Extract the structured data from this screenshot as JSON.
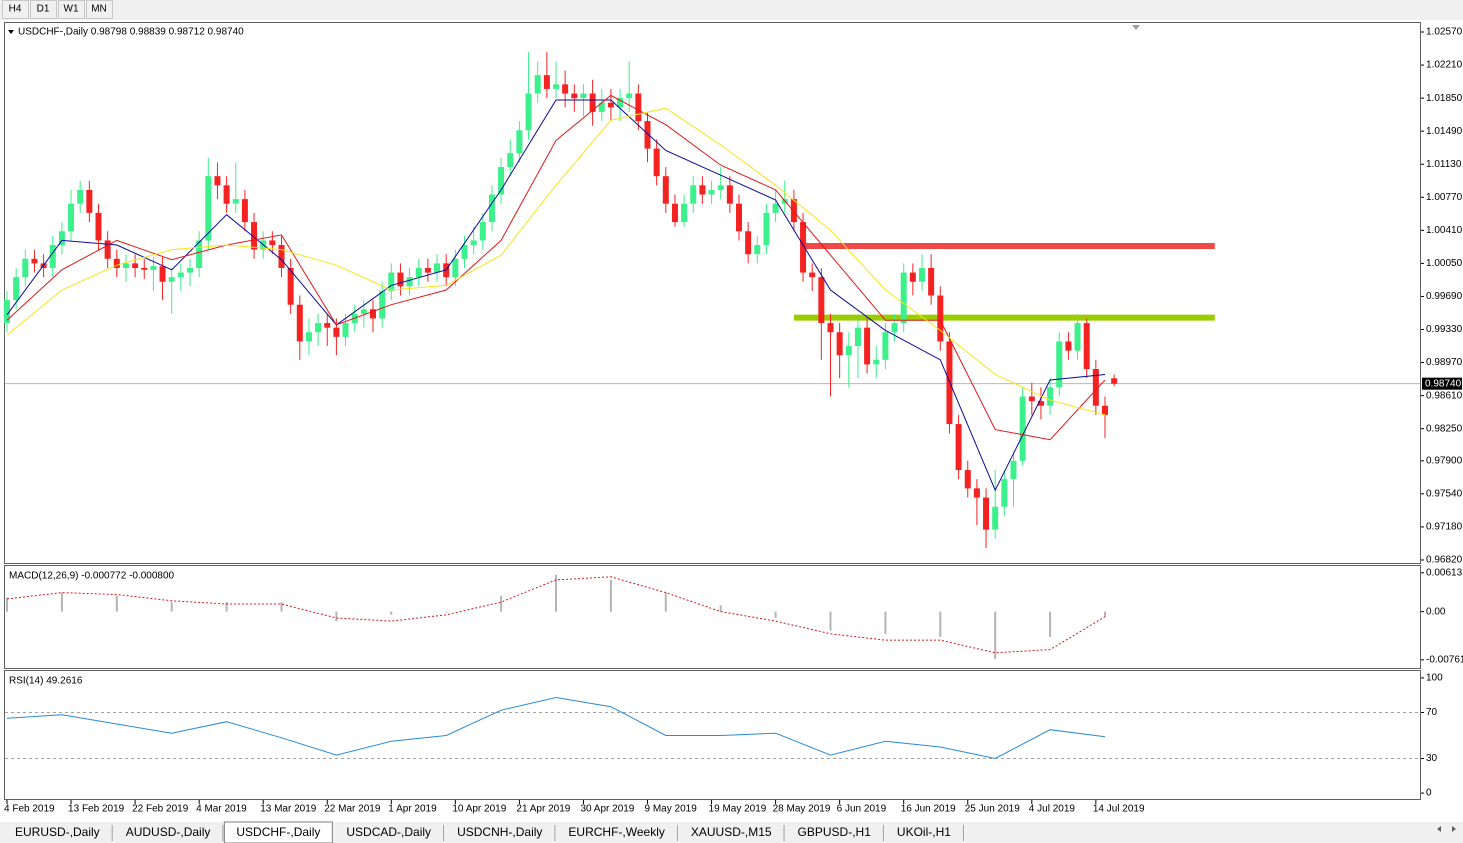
{
  "toolbar": {
    "timeframes": [
      "H4",
      "D1",
      "W1",
      "MN"
    ]
  },
  "tabs": {
    "items": [
      "EURUSD-,Daily",
      "AUDUSD-,Daily",
      "USDCHF-,Daily",
      "USDCAD-,Daily",
      "USDCNH-,Daily",
      "EURCHF-,Weekly",
      "XAUUSD-,M15",
      "GBPUSD-,H1",
      "UKOil-,H1"
    ],
    "active": 2
  },
  "chart_data": [
    {
      "type": "candlestick",
      "title": "USDCHF-,Daily 0.98798 0.98839 0.98712 0.98740",
      "categories": [
        "4 Feb 2019",
        null,
        null,
        null,
        null,
        null,
        null,
        "13 Feb 2019",
        null,
        null,
        null,
        null,
        null,
        null,
        "22 Feb 2019",
        null,
        null,
        null,
        null,
        null,
        null,
        "4 Mar 2019",
        null,
        null,
        null,
        null,
        null,
        null,
        "13 Mar 2019",
        null,
        null,
        null,
        null,
        null,
        null,
        "22 Mar 2019",
        null,
        null,
        null,
        null,
        null,
        null,
        "1 Apr 2019",
        null,
        null,
        null,
        null,
        null,
        null,
        "10 Apr 2019",
        null,
        null,
        null,
        null,
        null,
        null,
        "21 Apr 2019",
        null,
        null,
        null,
        null,
        null,
        null,
        "30 Apr 2019",
        null,
        null,
        null,
        null,
        null,
        null,
        "9 May 2019",
        null,
        null,
        null,
        null,
        null,
        null,
        "19 May 2019",
        null,
        null,
        null,
        null,
        null,
        null,
        "28 May 2019",
        null,
        null,
        null,
        null,
        null,
        null,
        "6 Jun 2019",
        null,
        null,
        null,
        null,
        null,
        null,
        "16 Jun 2019",
        null,
        null,
        null,
        null,
        null,
        null,
        "25 Jun 2019",
        null,
        null,
        null,
        null,
        null,
        null,
        "4 Jul 2019",
        null,
        null,
        null,
        null,
        null,
        null,
        "14 Jul 2019",
        null,
        null
      ],
      "open": [
        0.994,
        0.9965,
        0.999,
        1.001,
        1.0005,
        1.0,
        1.0025,
        1.004,
        1.007,
        1.0085,
        1.006,
        1.003,
        1.001,
        1.0,
        1.0005,
        1.0,
        0.9998,
        1.0002,
        0.9985,
        0.999,
        0.9995,
        1.0,
        1.003,
        1.01,
        1.009,
        1.007,
        1.0075,
        1.005,
        1.002,
        1.003,
        1.0025,
        1.0,
        0.996,
        0.992,
        0.993,
        0.994,
        0.9935,
        0.9925,
        0.994,
        0.995,
        0.9955,
        0.9945,
        0.9975,
        0.9995,
        0.998,
        0.999,
        1.0,
        0.9995,
        1.0005,
        0.999,
        1.001,
        1.0025,
        1.003,
        1.005,
        1.008,
        1.011,
        1.0125,
        1.015,
        1.019,
        1.021,
        1.0195,
        1.02,
        1.019,
        1.0185,
        1.019,
        1.017,
        1.018,
        1.0175,
        1.0185,
        1.019,
        1.016,
        1.013,
        1.01,
        1.007,
        1.005,
        1.007,
        1.009,
        1.008,
        1.0085,
        1.009,
        1.007,
        1.004,
        1.0015,
        1.0025,
        1.006,
        1.007,
        1.0075,
        1.005,
        0.9995,
        0.999,
        0.994,
        0.993,
        0.9905,
        0.9915,
        0.9935,
        0.9895,
        0.99,
        0.993,
        0.994,
        0.9995,
        0.9985,
        1.0,
        0.997,
        0.992,
        0.983,
        0.978,
        0.976,
        0.975,
        0.9715,
        0.974,
        0.977,
        0.979,
        0.986,
        0.9855,
        0.985,
        0.987,
        0.992,
        0.991,
        0.994,
        0.989,
        0.985,
        0.98798
      ],
      "high": [
        0.9975,
        1.0,
        1.002,
        1.002,
        1.0015,
        1.0035,
        1.005,
        1.0085,
        1.0095,
        1.0095,
        1.007,
        1.004,
        1.002,
        1.0015,
        1.0015,
        1.001,
        1.0012,
        1.0012,
        1.0,
        1.0005,
        1.001,
        1.004,
        1.012,
        1.0115,
        1.01,
        1.0115,
        1.0085,
        1.006,
        1.004,
        1.004,
        1.0035,
        1.001,
        0.997,
        0.9945,
        0.995,
        0.995,
        0.9945,
        0.995,
        0.996,
        0.9965,
        0.9965,
        0.9985,
        1.0005,
        1.0005,
        1.0,
        1.001,
        1.001,
        1.0015,
        1.0015,
        1.002,
        1.0035,
        1.0045,
        1.006,
        1.009,
        1.012,
        1.014,
        1.016,
        1.0235,
        1.0225,
        1.0235,
        1.0225,
        1.0215,
        1.02,
        1.02,
        1.0205,
        1.0195,
        1.0195,
        1.0195,
        1.0225,
        1.02,
        1.017,
        1.014,
        1.011,
        1.008,
        1.008,
        1.01,
        1.01,
        1.0095,
        1.011,
        1.01,
        1.008,
        1.005,
        1.0035,
        1.007,
        1.0085,
        1.0095,
        1.0085,
        1.006,
        1.0005,
        1.0,
        0.995,
        0.994,
        0.993,
        0.9945,
        0.9945,
        0.9915,
        0.994,
        0.995,
        1.0005,
        1.0005,
        1.0015,
        1.0015,
        0.998,
        0.993,
        0.984,
        0.979,
        0.977,
        0.976,
        0.978,
        0.978,
        0.98,
        0.987,
        0.9875,
        0.987,
        0.988,
        0.993,
        0.993,
        0.995,
        0.9945,
        0.99,
        0.986,
        0.98839
      ],
      "low": [
        0.993,
        0.9955,
        0.998,
        0.9995,
        0.999,
        0.999,
        1.0015,
        1.003,
        1.006,
        1.005,
        1.002,
        1.0,
        0.999,
        0.9985,
        0.999,
        0.9988,
        0.9975,
        0.9965,
        0.995,
        0.9975,
        0.998,
        0.999,
        1.002,
        1.0075,
        1.006,
        1.006,
        1.004,
        1.001,
        1.001,
        1.0015,
        0.999,
        0.995,
        0.99,
        0.9905,
        0.9915,
        0.9915,
        0.9905,
        0.9915,
        0.993,
        0.9935,
        0.993,
        0.9935,
        0.9965,
        0.997,
        0.997,
        0.998,
        0.9985,
        0.9985,
        0.998,
        0.998,
        1.0,
        1.0015,
        1.002,
        1.004,
        1.007,
        1.01,
        1.0115,
        1.014,
        1.018,
        1.0185,
        1.0185,
        1.0175,
        1.017,
        1.0165,
        1.0155,
        1.016,
        1.016,
        1.016,
        1.017,
        1.015,
        1.0115,
        1.009,
        1.006,
        1.0045,
        1.0045,
        1.006,
        1.007,
        1.007,
        1.0075,
        1.006,
        1.003,
        1.0005,
        1.0005,
        1.0015,
        1.005,
        1.006,
        1.004,
        0.9985,
        0.9975,
        0.99,
        0.986,
        0.988,
        0.987,
        0.988,
        0.9885,
        0.988,
        0.989,
        0.992,
        0.993,
        0.997,
        0.9975,
        0.996,
        0.991,
        0.982,
        0.977,
        0.975,
        0.972,
        0.9695,
        0.9705,
        0.973,
        0.974,
        0.9785,
        0.984,
        0.9835,
        0.984,
        0.986,
        0.99,
        0.99,
        0.988,
        0.984,
        0.9815,
        0.98712
      ],
      "close": [
        0.9965,
        0.999,
        1.001,
        1.0005,
        1.0,
        1.0025,
        1.004,
        1.007,
        1.0085,
        1.006,
        1.003,
        1.001,
        1.0,
        1.0005,
        1.0,
        0.9998,
        1.0002,
        0.9985,
        0.999,
        0.9995,
        1.0,
        1.003,
        1.01,
        1.009,
        1.007,
        1.0075,
        1.005,
        1.002,
        1.003,
        1.0025,
        1.0,
        0.996,
        0.992,
        0.993,
        0.994,
        0.9935,
        0.9925,
        0.994,
        0.995,
        0.9955,
        0.9945,
        0.9975,
        0.9995,
        0.998,
        0.999,
        1.0,
        0.9995,
        1.0005,
        0.999,
        1.001,
        1.0025,
        1.003,
        1.005,
        1.008,
        1.011,
        1.0125,
        1.015,
        1.019,
        1.021,
        1.0195,
        1.02,
        1.019,
        1.0185,
        1.019,
        1.017,
        1.018,
        1.0175,
        1.0185,
        1.019,
        1.016,
        1.013,
        1.01,
        1.007,
        1.005,
        1.007,
        1.009,
        1.008,
        1.0085,
        1.009,
        1.007,
        1.004,
        1.0015,
        1.0025,
        1.006,
        1.007,
        1.0075,
        1.005,
        0.9995,
        0.999,
        0.994,
        0.993,
        0.9905,
        0.9915,
        0.9935,
        0.9895,
        0.99,
        0.993,
        0.994,
        0.9995,
        0.9985,
        1.0,
        0.997,
        0.992,
        0.983,
        0.978,
        0.976,
        0.975,
        0.9715,
        0.974,
        0.977,
        0.979,
        0.986,
        0.9855,
        0.985,
        0.987,
        0.992,
        0.991,
        0.994,
        0.989,
        0.985,
        0.984,
        0.9874
      ],
      "colors": {
        "up": "#3cf08c",
        "down": "#f52222"
      },
      "ylim": [
        0.96787,
        1.02679
      ],
      "yticks": [
        {
          "value": 1.0257,
          "label": "1.02570"
        },
        {
          "value": 1.0221,
          "label": "1.02210"
        },
        {
          "value": 1.0185,
          "label": "1.01850"
        },
        {
          "value": 1.0149,
          "label": "1.01490"
        },
        {
          "value": 1.0113,
          "label": "1.01130"
        },
        {
          "value": 1.0077,
          "label": "1.00770"
        },
        {
          "value": 1.0041,
          "label": "1.00410"
        },
        {
          "value": 1.0005,
          "label": "1.00050"
        },
        {
          "value": 0.9969,
          "label": "0.99690"
        },
        {
          "value": 0.9933,
          "label": "0.99330"
        },
        {
          "value": 0.9897,
          "label": "0.98970"
        },
        {
          "value": 0.9861,
          "label": "0.98610"
        },
        {
          "value": 0.9825,
          "label": "0.98250"
        },
        {
          "value": 0.979,
          "label": "0.97900"
        },
        {
          "value": 0.9754,
          "label": "0.97540"
        },
        {
          "value": 0.9718,
          "label": "0.97180"
        },
        {
          "value": 0.9682,
          "label": "0.96820"
        }
      ],
      "current_price": {
        "value": 0.9874,
        "label": "0.98740"
      },
      "moving_averages": {
        "x": [
          0,
          6,
          12,
          18,
          24,
          30,
          36,
          42,
          48,
          54,
          60,
          66,
          72,
          78,
          84,
          90,
          96,
          102,
          108,
          114,
          120
        ],
        "series": [
          {
            "color": "#0a0a9a",
            "values": [
              0.9949,
              1.003,
              1.0025,
              0.9998,
              1.0058,
              1.0009,
              0.9938,
              0.9981,
              0.9998,
              1.0085,
              1.0183,
              1.0183,
              1.0128,
              1.0101,
              1.0074,
              0.9976,
              0.9932,
              0.99,
              0.9758,
              0.9878,
              0.9884
            ]
          },
          {
            "color": "#e01818",
            "values": [
              0.9943,
              0.9998,
              1.003,
              1.0009,
              1.0025,
              1.0036,
              0.9938,
              0.996,
              0.9976,
              1.003,
              1.0139,
              1.0188,
              1.0156,
              1.0112,
              1.0085,
              1.0014,
              0.9943,
              0.9943,
              0.9824,
              0.9813,
              0.9878
            ]
          },
          {
            "color": "#f5e51a",
            "values": [
              0.9927,
              0.9976,
              1.0003,
              1.002,
              1.0025,
              1.002,
              1.0003,
              0.9976,
              0.9981,
              1.0014,
              1.009,
              1.0161,
              1.0174,
              1.0134,
              1.009,
              1.0041,
              0.9976,
              0.9932,
              0.9884,
              0.9856,
              0.984
            ]
          }
        ]
      },
      "levels": [
        {
          "value": 1.0024,
          "x": [
            87,
            132
          ],
          "color": "#f04848"
        },
        {
          "value": 0.9946,
          "x": [
            86,
            132
          ],
          "color": "#9acd00"
        }
      ]
    },
    {
      "type": "macd",
      "title": "MACD(12,26,9) -0.000772 -0.000800",
      "x": [
        0,
        6,
        12,
        18,
        24,
        30,
        36,
        42,
        48,
        54,
        60,
        66,
        72,
        78,
        84,
        90,
        96,
        102,
        108,
        114,
        120
      ],
      "series": [
        {
          "color": "#b4b4b4",
          "style": "histogram",
          "values": [
            0.0022,
            0.003,
            0.0025,
            0.0015,
            0.0015,
            0.0015,
            -0.0015,
            -0.0005,
            0.0,
            0.0025,
            0.0058,
            0.005,
            0.003,
            0.001,
            -0.001,
            -0.003,
            -0.0035,
            -0.004,
            -0.0075,
            -0.004,
            -0.0008
          ]
        },
        {
          "color": "#d81818",
          "style": "dotted",
          "values": [
            0.002,
            0.003,
            0.0027,
            0.0017,
            0.0012,
            0.0012,
            -0.001,
            -0.0015,
            -0.0005,
            0.0015,
            0.005,
            0.0055,
            0.003,
            0.0,
            -0.0015,
            -0.0035,
            -0.0045,
            -0.0045,
            -0.0065,
            -0.006,
            -0.0008
          ]
        }
      ],
      "ylim": [
        -0.0089,
        0.0072
      ],
      "yticks": [
        0.00613,
        {
          "value": 0,
          "label": "0.00"
        },
        -0.007612
      ]
    },
    {
      "type": "line",
      "title": "RSI(14) 49.2616",
      "x": [
        0,
        6,
        12,
        18,
        24,
        30,
        36,
        42,
        48,
        54,
        60,
        66,
        72,
        78,
        84,
        90,
        96,
        102,
        108,
        114,
        120
      ],
      "series": [
        {
          "color": "#2a8ad6",
          "values": [
            65,
            68,
            60,
            52,
            62,
            48,
            33,
            45,
            50,
            72,
            83,
            75,
            50,
            50,
            52,
            33,
            45,
            40,
            30,
            55,
            49
          ]
        }
      ],
      "ylim": [
        -6,
        106
      ],
      "yticks": [
        100,
        70,
        30,
        0
      ],
      "levels": [
        70,
        30
      ]
    }
  ]
}
